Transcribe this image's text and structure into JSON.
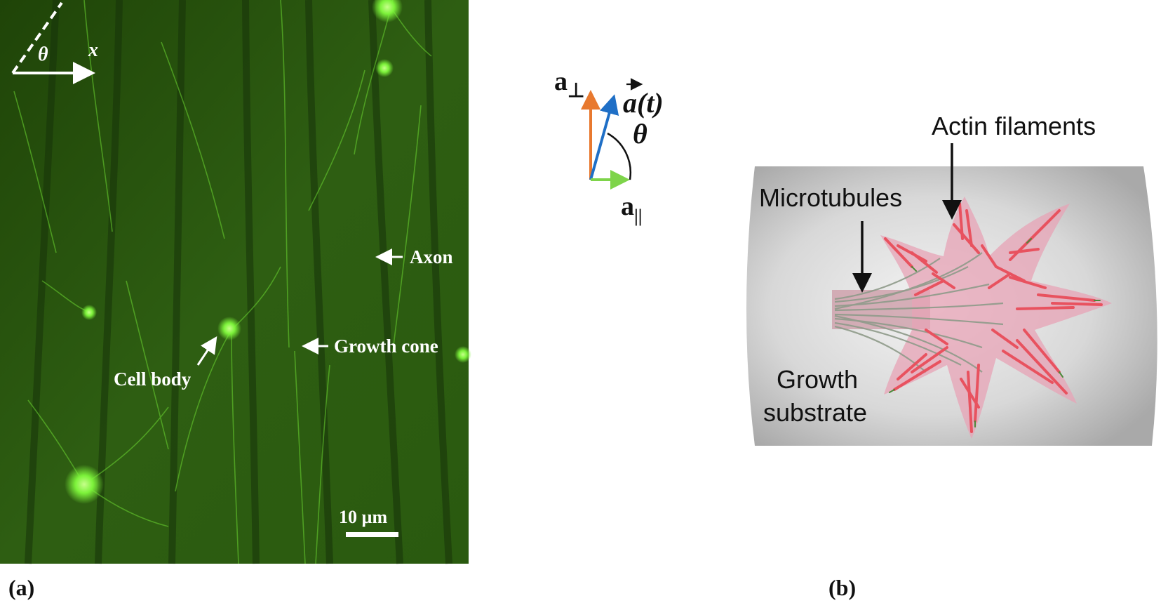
{
  "panel_a": {
    "angle_symbol": "θ",
    "axis_label": "x",
    "axon_label": "Axon",
    "growth_cone_label": "Growth cone",
    "cell_body_label": "Cell body",
    "scale_bar_label": "10 µm",
    "panel_label": "(a)"
  },
  "vector_inset": {
    "perp_label_base": "a",
    "perp_label_sub": "⊥",
    "vector_label_base": "a",
    "vector_label_arg": "(t)",
    "angle_symbol": "θ",
    "par_label_base": "a",
    "par_label_sub": "||",
    "colors": {
      "perpendicular": "#e8792f",
      "vector": "#1f6fc6",
      "parallel": "#7ed44a"
    }
  },
  "panel_b": {
    "actin_label": "Actin filaments",
    "microtubules_label": "Microtubules",
    "substrate_line1": "Growth",
    "substrate_line2": "substrate",
    "panel_label": "(b)"
  },
  "colors": {
    "micrograph_bg": "#2c5a10",
    "fluorescence": "#7cf23a",
    "actin": "#e8525f",
    "membrane": "#e7a3b5",
    "substrate": "#c9c9c9"
  }
}
